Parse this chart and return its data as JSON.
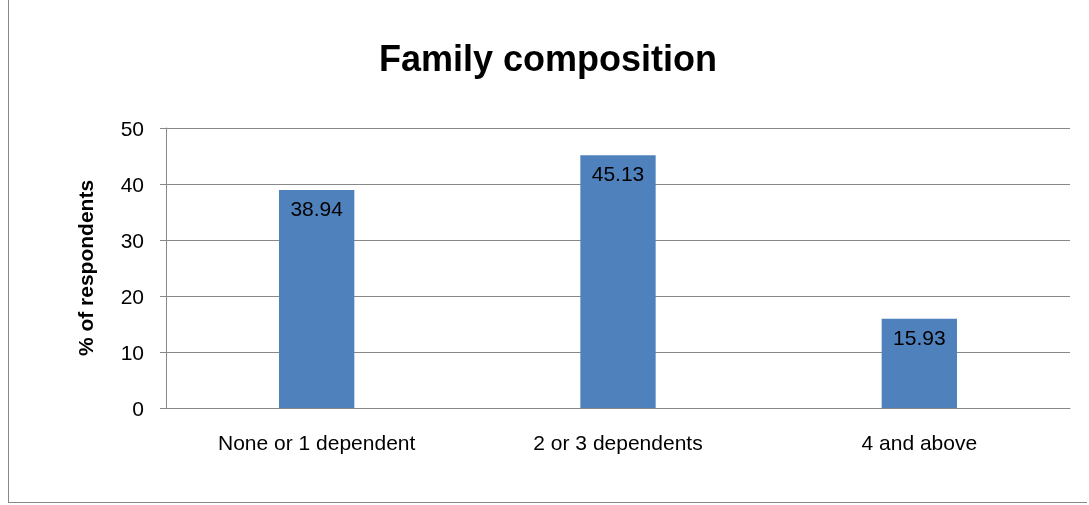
{
  "chart_data": {
    "type": "bar",
    "title": "Family composition",
    "ylabel": "% of respondents",
    "categories": [
      "None or 1 dependent",
      "2 or 3 dependents",
      "4 and above"
    ],
    "values": [
      38.94,
      45.13,
      15.93
    ],
    "color": "#4f81bd",
    "data_labels": true,
    "ylim": [
      0,
      50
    ],
    "yticks": [
      0,
      10,
      20,
      30,
      40,
      50
    ],
    "grid": "y"
  }
}
